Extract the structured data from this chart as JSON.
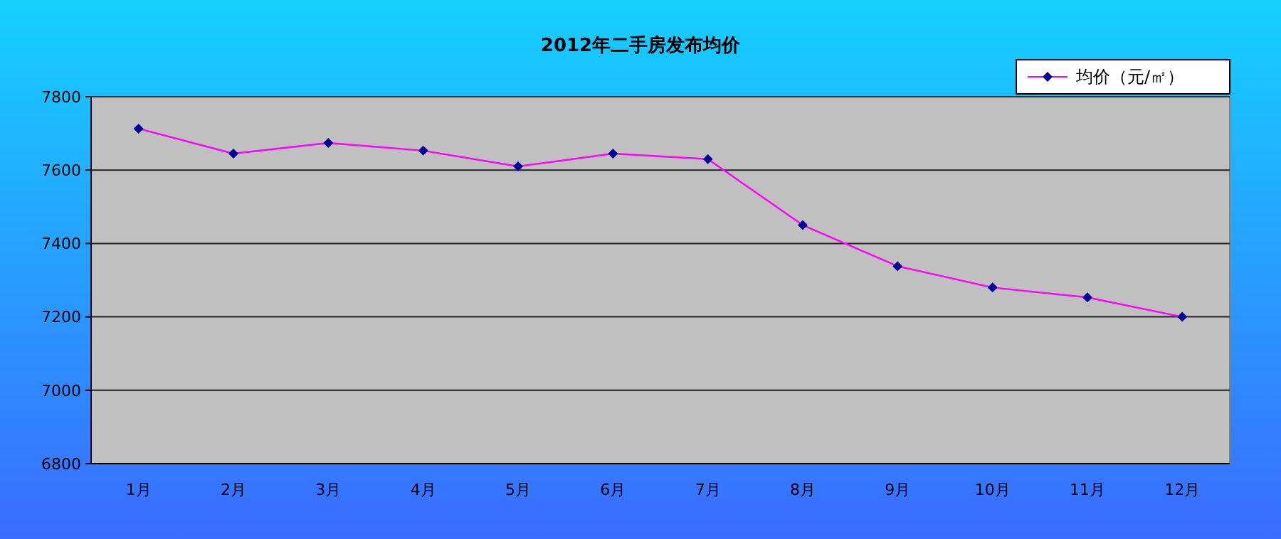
{
  "chart_data": {
    "type": "line",
    "title": "2012年二手房发布均价",
    "categories": [
      "1月",
      "2月",
      "3月",
      "4月",
      "5月",
      "6月",
      "7月",
      "8月",
      "9月",
      "10月",
      "11月",
      "12月"
    ],
    "series": [
      {
        "name": "均价（元/㎡）",
        "color": "#ff00ff",
        "values": [
          7713,
          7645,
          7674,
          7653,
          7610,
          7645,
          7630,
          7450,
          7338,
          7280,
          7253,
          7200
        ]
      }
    ],
    "ylim": [
      6800,
      7800
    ],
    "yticks": [
      6800,
      7000,
      7200,
      7400,
      7600,
      7800
    ],
    "grid": "y",
    "legend": "top right",
    "marker": "diamond",
    "line_style": "solid"
  }
}
